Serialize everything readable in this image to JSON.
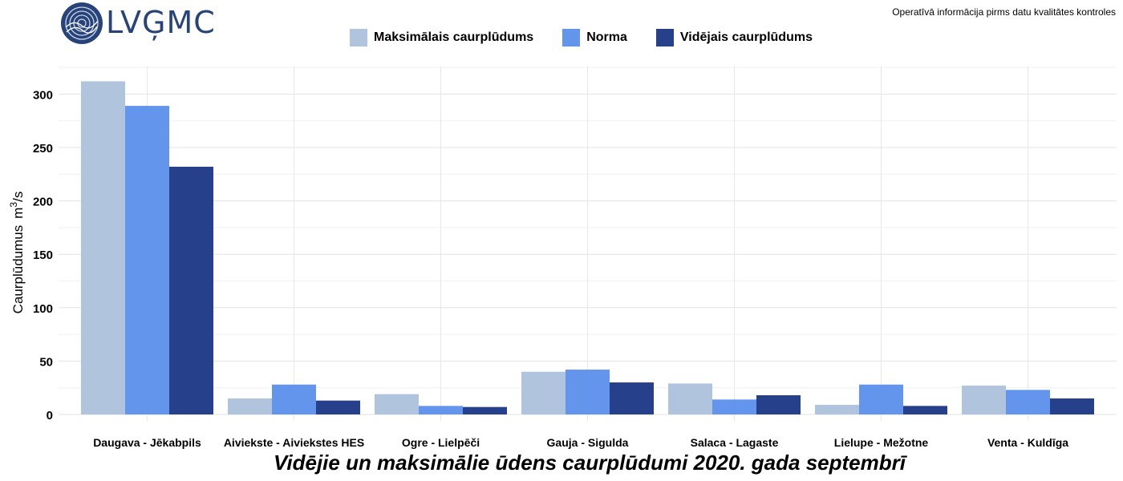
{
  "header": {
    "logo_text": "LVĢMC",
    "note": "Operatīvā informācija pirms datu kvalitātes kontroles"
  },
  "chart_data": {
    "type": "bar",
    "title": "Vidējie un maksimālie ūdens caurplūdumi 2020. gada septembrī",
    "xlabel": "",
    "ylabel": "Caurplūdumus",
    "ylabel_unit_base": "m",
    "ylabel_unit_exp": "3",
    "ylabel_unit_den": "/s",
    "ylim": [
      0,
      325
    ],
    "yticks": [
      0,
      50,
      100,
      150,
      200,
      250,
      300
    ],
    "grid": true,
    "legend_position": "top",
    "categories": [
      "Daugava - Jēkabpils",
      "Aiviekste - Aiviekstes HES",
      "Ogre - Lielpēči",
      "Gauja - Sigulda",
      "Salaca - Lagaste",
      "Lielupe - Mežotne",
      "Venta - Kuldīga"
    ],
    "series": [
      {
        "name": "Maksimālais caurplūdums",
        "color": "#b0c4de",
        "values": [
          312,
          15,
          19,
          40,
          29,
          9,
          27
        ]
      },
      {
        "name": "Norma",
        "color": "#6495ed",
        "values": [
          289,
          28,
          8,
          42,
          14,
          28,
          23
        ]
      },
      {
        "name": "Vidējais caurplūdums",
        "color": "#27408b",
        "values": [
          232,
          13,
          7,
          30,
          18,
          8,
          15
        ]
      }
    ]
  }
}
